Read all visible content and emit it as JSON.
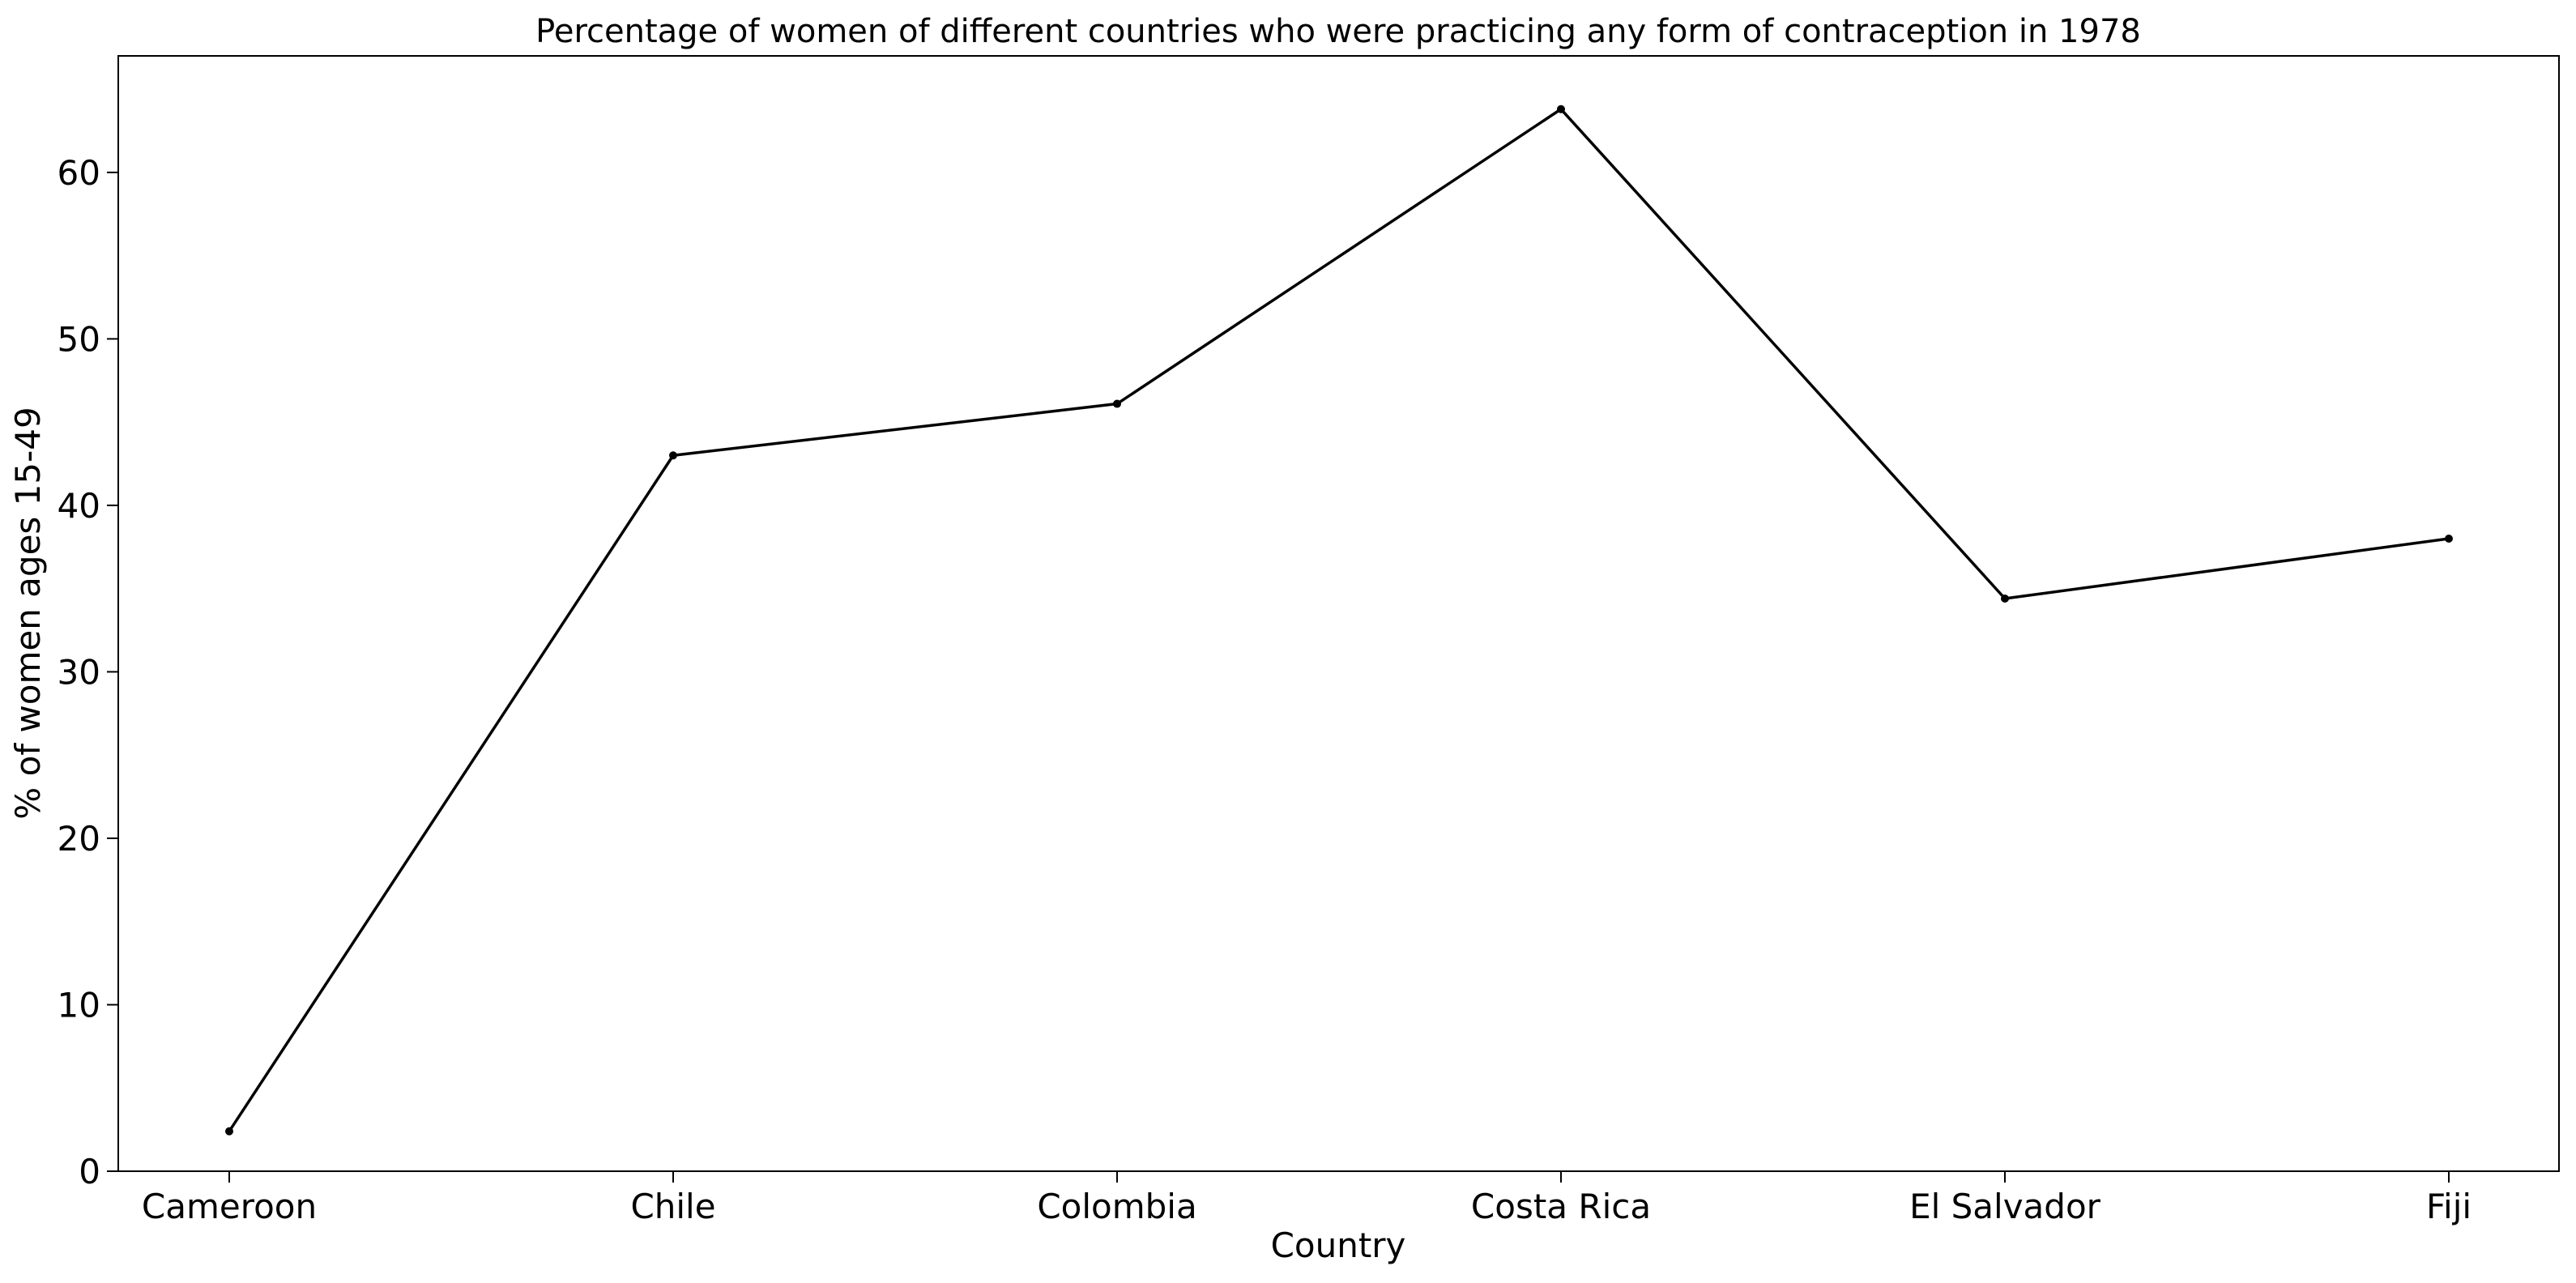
{
  "chart_data": {
    "type": "line",
    "title": "Percentage of women of different countries who were practicing any form of contraception in 1978",
    "xlabel": "Country",
    "ylabel": "% of women ages 15-49",
    "categories": [
      "Cameroon",
      "Chile",
      "Colombia",
      "Costa Rica",
      "El Salvador",
      "Fiji"
    ],
    "series": [
      {
        "values": [
          2.4,
          43.0,
          46.1,
          63.8,
          34.4,
          38.0
        ]
      }
    ],
    "ylim": [
      0,
      67
    ],
    "yticks": [
      0,
      10,
      20,
      30,
      40,
      50,
      60
    ],
    "grid": false,
    "line_color": "#000000"
  }
}
